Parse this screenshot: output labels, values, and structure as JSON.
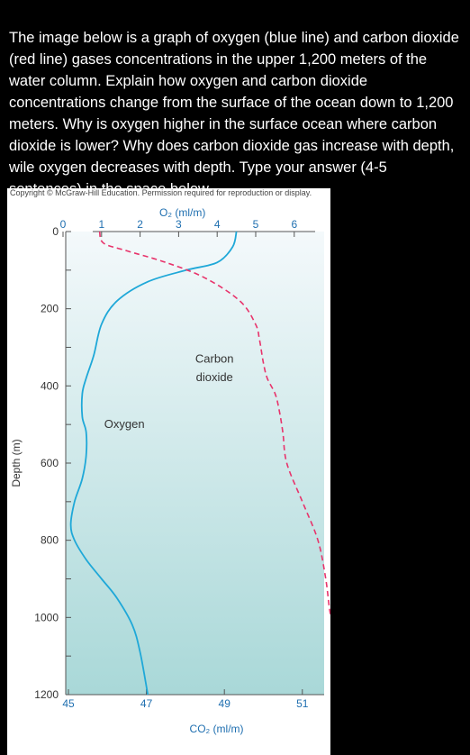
{
  "question": {
    "text": "The image below is a graph of oxygen (blue line) and carbon dioxide (red line) gases concentrations in the upper 1,200 meters of the water column. Explain how oxygen and carbon dioxide concentrations change from the surface of the ocean down to 1,200 meters. Why is oxygen higher in the surface ocean where carbon dioxide is lower? Why does carbon dioxide gas increase with depth, wile oxygen decreases with depth. Type your answer (4-5 sentences) in the space below."
  },
  "figure": {
    "copyright": "Copyright © McGraw-Hill Education. Permission required for reproduction or display."
  },
  "colors": {
    "oxygen": "#1fa8d8",
    "carbon_dioxide": "#e8336b",
    "background_top": "#f4f9fb",
    "background_bottom": "#a9d8d8"
  },
  "chart_data": {
    "type": "line",
    "ylabel": "Depth (m)",
    "top_xlabel": "O₂ (ml/m)",
    "bottom_xlabel": "CO₂ (ml/m)",
    "y_ticks": [
      "0",
      "200",
      "400",
      "600",
      "800",
      "1000",
      "1200"
    ],
    "y_tick_values": [
      0,
      200,
      400,
      600,
      800,
      1000,
      1200
    ],
    "o2_ticks": [
      "0",
      "1",
      "2",
      "3",
      "4",
      "5",
      "6"
    ],
    "o2_tick_values": [
      0,
      1,
      2,
      3,
      4,
      5,
      6
    ],
    "co2_ticks": [
      "45",
      "47",
      "49",
      "51"
    ],
    "co2_tick_values": [
      45,
      47,
      49,
      51
    ],
    "ylim": [
      0,
      1200
    ],
    "o2_lim": [
      0,
      6.5
    ],
    "co2_lim": [
      45,
      52
    ],
    "annotations": {
      "oxygen": "Oxygen",
      "co2_line1": "Carbon",
      "co2_line2": "dioxide"
    },
    "series": [
      {
        "name": "Oxygen",
        "axis": "O2",
        "x": [
          4.5,
          4.4,
          4.0,
          3.2,
          2.2,
          1.4,
          1.0,
          0.8,
          0.6,
          0.5,
          0.5,
          0.6,
          0.6,
          0.5,
          0.3,
          0.2,
          0.3,
          0.6,
          1.0,
          1.4,
          1.8,
          2.0,
          2.2
        ],
        "y": [
          0,
          40,
          80,
          100,
          130,
          180,
          240,
          320,
          380,
          420,
          480,
          520,
          580,
          640,
          700,
          760,
          800,
          850,
          900,
          950,
          1020,
          1090,
          1200
        ]
      },
      {
        "name": "Carbon dioxide",
        "axis": "CO2",
        "x": [
          45.8,
          45.9,
          46.5,
          47.5,
          48.5,
          49.4,
          49.8,
          49.9,
          50.0,
          50.1,
          50.3,
          50.4,
          50.5,
          50.6,
          51.0,
          51.4,
          51.6,
          51.7,
          51.8
        ],
        "y": [
          0,
          30,
          50,
          80,
          120,
          180,
          240,
          280,
          340,
          380,
          420,
          460,
          520,
          600,
          700,
          800,
          900,
          980,
          1030
        ]
      }
    ]
  }
}
